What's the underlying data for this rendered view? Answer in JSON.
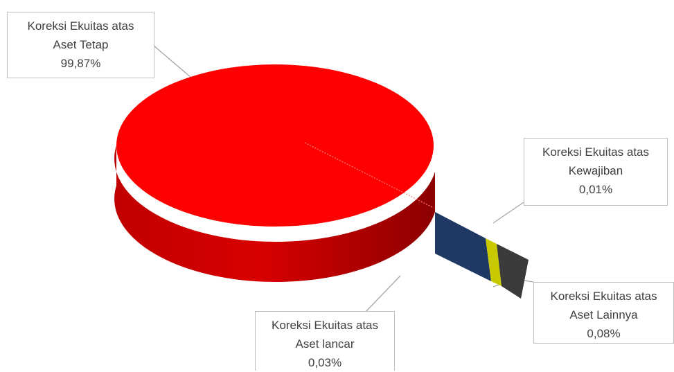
{
  "chart_data": {
    "type": "pie",
    "title": "",
    "style": "3d-exploded",
    "categories": [
      "Koreksi Ekuitas atas Aset Tetap",
      "Koreksi Ekuitas atas Kewajiban",
      "Koreksi Ekuitas atas Aset lancar",
      "Koreksi Ekuitas atas Aset Lainnya"
    ],
    "values": [
      99.87,
      0.01,
      0.03,
      0.08
    ],
    "colors": [
      "#ff0000",
      "#1f3864",
      "#c9c900",
      "#3b3b3b"
    ],
    "labels": [
      {
        "line1": "Koreksi Ekuitas atas",
        "line2": "Aset Tetap",
        "pct": "99,87%"
      },
      {
        "line1": "Koreksi Ekuitas atas",
        "line2": "Kewajiban",
        "pct": "0,01%"
      },
      {
        "line1": "Koreksi Ekuitas atas",
        "line2": "Aset lancar",
        "pct": "0,03%"
      },
      {
        "line1": "Koreksi Ekuitas atas",
        "line2": "Aset Lainnya",
        "pct": "0,08%"
      }
    ]
  }
}
